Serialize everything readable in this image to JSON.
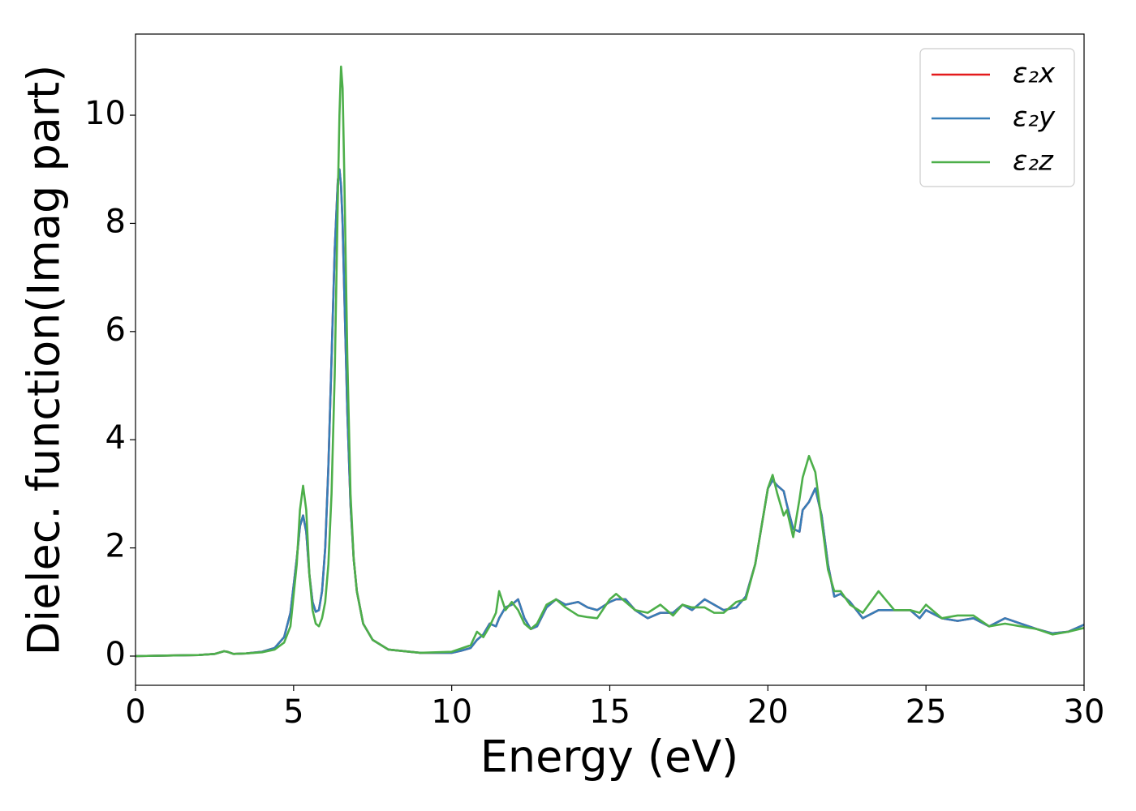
{
  "chart_data": {
    "type": "line",
    "x_label": "Energy (eV)",
    "y_label": "Dielec. function(Imag part)",
    "x": [
      0,
      1,
      2,
      2.5,
      2.8,
      2.9,
      3.1,
      3.5,
      4,
      4.4,
      4.7,
      4.9,
      5.1,
      5.2,
      5.3,
      5.4,
      5.5,
      5.6,
      5.7,
      5.8,
      5.9,
      6.0,
      6.1,
      6.2,
      6.3,
      6.4,
      6.45,
      6.5,
      6.55,
      6.6,
      6.7,
      6.8,
      6.9,
      7.0,
      7.2,
      7.5,
      8,
      9,
      10,
      10.3,
      10.6,
      10.8,
      11,
      11.2,
      11.4,
      11.5,
      11.7,
      11.9,
      12.1,
      12.3,
      12.5,
      12.7,
      13,
      13.3,
      13.6,
      14,
      14.3,
      14.6,
      15,
      15.2,
      15.5,
      15.8,
      16.2,
      16.6,
      17,
      17.3,
      17.6,
      18,
      18.3,
      18.6,
      19,
      19.3,
      19.6,
      19.8,
      20,
      20.15,
      20.3,
      20.5,
      20.6,
      20.8,
      21,
      21.1,
      21.3,
      21.5,
      21.7,
      21.9,
      22.1,
      22.3,
      22.6,
      23,
      23.5,
      24,
      24.5,
      24.8,
      25,
      25.5,
      26,
      26.5,
      27,
      27.5,
      28,
      28.5,
      29,
      29.5,
      30
    ],
    "series": [
      {
        "name": "ε₂x",
        "color": "#e41a1c",
        "values": [
          0,
          0.01,
          0.02,
          0.04,
          0.09,
          0.08,
          0.04,
          0.05,
          0.08,
          0.15,
          0.35,
          0.8,
          1.8,
          2.4,
          2.6,
          2.3,
          1.5,
          1.0,
          0.82,
          0.85,
          1.2,
          2.0,
          3.5,
          5.5,
          7.5,
          8.8,
          9.0,
          8.7,
          8.0,
          6.8,
          4.5,
          2.8,
          1.8,
          1.2,
          0.6,
          0.3,
          0.12,
          0.06,
          0.06,
          0.1,
          0.15,
          0.3,
          0.4,
          0.6,
          0.55,
          0.7,
          0.9,
          0.95,
          1.05,
          0.7,
          0.5,
          0.55,
          0.9,
          1.05,
          0.95,
          1.0,
          0.9,
          0.85,
          1.0,
          1.05,
          1.05,
          0.85,
          0.7,
          0.8,
          0.8,
          0.95,
          0.85,
          1.05,
          0.95,
          0.85,
          0.9,
          1.1,
          1.7,
          2.4,
          3.1,
          3.25,
          3.15,
          3.05,
          2.8,
          2.35,
          2.3,
          2.7,
          2.85,
          3.1,
          2.6,
          1.7,
          1.1,
          1.15,
          1.0,
          0.7,
          0.85,
          0.85,
          0.85,
          0.7,
          0.85,
          0.7,
          0.65,
          0.7,
          0.55,
          0.7,
          0.6,
          0.5,
          0.42,
          0.45,
          0.58
        ]
      },
      {
        "name": "ε₂y",
        "color": "#377eb8",
        "values": [
          0,
          0.01,
          0.02,
          0.04,
          0.09,
          0.08,
          0.04,
          0.05,
          0.08,
          0.15,
          0.35,
          0.8,
          1.8,
          2.4,
          2.6,
          2.3,
          1.5,
          1.0,
          0.82,
          0.85,
          1.2,
          2.0,
          3.5,
          5.5,
          7.5,
          8.8,
          9.0,
          8.7,
          8.0,
          6.8,
          4.5,
          2.8,
          1.8,
          1.2,
          0.6,
          0.3,
          0.12,
          0.06,
          0.06,
          0.1,
          0.15,
          0.3,
          0.4,
          0.6,
          0.55,
          0.7,
          0.9,
          0.95,
          1.05,
          0.7,
          0.5,
          0.55,
          0.9,
          1.05,
          0.95,
          1.0,
          0.9,
          0.85,
          1.0,
          1.05,
          1.05,
          0.85,
          0.7,
          0.8,
          0.8,
          0.95,
          0.85,
          1.05,
          0.95,
          0.85,
          0.9,
          1.1,
          1.7,
          2.4,
          3.1,
          3.25,
          3.15,
          3.05,
          2.8,
          2.35,
          2.3,
          2.7,
          2.85,
          3.1,
          2.6,
          1.7,
          1.1,
          1.15,
          1.0,
          0.7,
          0.85,
          0.85,
          0.85,
          0.7,
          0.85,
          0.7,
          0.65,
          0.7,
          0.55,
          0.7,
          0.6,
          0.5,
          0.42,
          0.45,
          0.58
        ]
      },
      {
        "name": "ε₂z",
        "color": "#4daf4a",
        "values": [
          0,
          0.01,
          0.02,
          0.04,
          0.09,
          0.08,
          0.04,
          0.05,
          0.07,
          0.12,
          0.25,
          0.55,
          1.7,
          2.7,
          3.15,
          2.7,
          1.5,
          0.85,
          0.6,
          0.55,
          0.7,
          1.0,
          1.7,
          3.0,
          5.2,
          8.5,
          10.0,
          10.9,
          10.5,
          9.0,
          5.5,
          3.0,
          1.8,
          1.2,
          0.6,
          0.3,
          0.12,
          0.06,
          0.08,
          0.14,
          0.2,
          0.45,
          0.35,
          0.55,
          0.8,
          1.2,
          0.85,
          1.0,
          0.85,
          0.6,
          0.5,
          0.6,
          0.95,
          1.05,
          0.9,
          0.75,
          0.72,
          0.7,
          1.05,
          1.15,
          1.0,
          0.85,
          0.8,
          0.95,
          0.75,
          0.95,
          0.9,
          0.9,
          0.8,
          0.8,
          1.0,
          1.05,
          1.7,
          2.4,
          3.1,
          3.35,
          3.0,
          2.6,
          2.7,
          2.2,
          2.9,
          3.3,
          3.7,
          3.4,
          2.5,
          1.6,
          1.2,
          1.2,
          0.95,
          0.8,
          1.2,
          0.85,
          0.85,
          0.8,
          0.95,
          0.7,
          0.75,
          0.75,
          0.55,
          0.6,
          0.55,
          0.5,
          0.4,
          0.45,
          0.52
        ]
      }
    ],
    "xlim": [
      0,
      30
    ],
    "xticks": [
      0,
      5,
      10,
      15,
      20,
      25,
      30
    ],
    "ylim": [
      -0.54,
      11.5
    ],
    "yticks": [
      0,
      2,
      4,
      6,
      8,
      10
    ],
    "grid": false,
    "legend": "upper right"
  }
}
